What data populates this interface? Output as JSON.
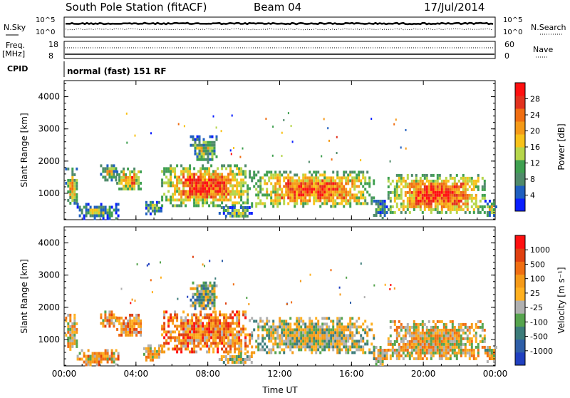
{
  "header": {
    "station": "South Pole Station (fitACF)",
    "beam": "Beam 04",
    "date": "17/Jul/2014"
  },
  "status_panels": {
    "nsky_label": "N.Sky",
    "nsky_ticks": [
      "10^5",
      "10^0"
    ],
    "nsearch_label": "N.Search",
    "nsearch_ticks": [
      "10^5",
      "10^0"
    ],
    "freq_label": "Freq.",
    "freq_unit": "[MHz]",
    "freq_ticks": [
      "18",
      "8"
    ],
    "nave_label": "Nave",
    "nave_ticks": [
      "60",
      "0"
    ],
    "cpid_label": "CPID",
    "cpid_text": "normal (fast) 151 RF"
  },
  "chart_data": [
    {
      "type": "heatmap",
      "title": "",
      "ylabel": "Slant Range [km]",
      "xlabel": "",
      "x_ticks": [
        "00:00",
        "04:00",
        "08:00",
        "12:00",
        "16:00",
        "20:00",
        "00:00"
      ],
      "xlim_hours": [
        0,
        24
      ],
      "y_ticks": [
        1000,
        2000,
        3000,
        4000
      ],
      "ylim": [
        180,
        4500
      ],
      "colorbar": {
        "label": "Power [dB]",
        "ticks": [
          "4",
          "8",
          "12",
          "16",
          "20",
          "24",
          "28"
        ],
        "colors": [
          "#0a1fff",
          "#1f5fc0",
          "#4f8a6a",
          "#3fa050",
          "#b6d64b",
          "#f8c21a",
          "#f59a18",
          "#f06e12",
          "#e2321e",
          "#ff1010"
        ]
      },
      "echo_regions": [
        {
          "t0": 0.05,
          "t1": 0.7,
          "r0": 700,
          "r1": 1800,
          "level": 0.55
        },
        {
          "t0": 0.7,
          "t1": 3.0,
          "r0": 250,
          "r1": 700,
          "level": 0.3
        },
        {
          "t0": 2.0,
          "t1": 2.9,
          "r0": 1450,
          "r1": 1900,
          "level": 0.5
        },
        {
          "t0": 2.9,
          "t1": 4.3,
          "r0": 1100,
          "r1": 1800,
          "level": 0.65
        },
        {
          "t0": 4.4,
          "t1": 5.4,
          "r0": 400,
          "r1": 850,
          "level": 0.35
        },
        {
          "t0": 5.4,
          "t1": 10.3,
          "r0": 650,
          "r1": 1900,
          "level": 0.8
        },
        {
          "t0": 7.0,
          "t1": 8.5,
          "r0": 2000,
          "r1": 2800,
          "level": 0.4
        },
        {
          "t0": 8.6,
          "t1": 10.4,
          "r0": 250,
          "r1": 600,
          "level": 0.35
        },
        {
          "t0": 10.4,
          "t1": 17.2,
          "r0": 600,
          "r1": 1700,
          "level": 0.75
        },
        {
          "t0": 17.2,
          "t1": 18.0,
          "r0": 250,
          "r1": 800,
          "level": 0.3
        },
        {
          "t0": 18.0,
          "t1": 23.4,
          "r0": 400,
          "r1": 1600,
          "level": 0.8
        },
        {
          "t0": 23.4,
          "t1": 24.0,
          "r0": 300,
          "r1": 800,
          "level": 0.4
        }
      ]
    },
    {
      "type": "heatmap",
      "title": "",
      "ylabel": "Slant Range [km]",
      "xlabel": "Time UT",
      "x_ticks": [
        "00:00",
        "04:00",
        "08:00",
        "12:00",
        "16:00",
        "20:00",
        "00:00"
      ],
      "xlim_hours": [
        0,
        24
      ],
      "y_ticks": [
        1000,
        2000,
        3000,
        4000
      ],
      "ylim": [
        180,
        4500
      ],
      "colorbar": {
        "label": "Velocity [m s⁻¹]",
        "ticks": [
          "1000",
          "500",
          "100",
          "25",
          "-25",
          "-100",
          "-500",
          "-1000"
        ],
        "colors": [
          "#2040c0",
          "#2f5fa8",
          "#3c7c7a",
          "#56a44e",
          "#b0b0b0",
          "#ffb020",
          "#f59a18",
          "#f06e12",
          "#e04010",
          "#ff1010"
        ]
      },
      "echo_regions": [
        {
          "t0": 0.05,
          "t1": 0.7,
          "r0": 700,
          "r1": 1800,
          "level": 0.55
        },
        {
          "t0": 0.7,
          "t1": 3.0,
          "r0": 250,
          "r1": 700,
          "level": 0.6
        },
        {
          "t0": 2.0,
          "t1": 2.9,
          "r0": 1450,
          "r1": 1900,
          "level": 0.6
        },
        {
          "t0": 2.9,
          "t1": 4.3,
          "r0": 1100,
          "r1": 1800,
          "level": 0.65
        },
        {
          "t0": 4.4,
          "t1": 5.4,
          "r0": 400,
          "r1": 850,
          "level": 0.55
        },
        {
          "t0": 5.4,
          "t1": 10.3,
          "r0": 650,
          "r1": 1900,
          "level": 0.7
        },
        {
          "t0": 7.0,
          "t1": 8.5,
          "r0": 2000,
          "r1": 2800,
          "level": 0.4
        },
        {
          "t0": 8.6,
          "t1": 10.4,
          "r0": 250,
          "r1": 600,
          "level": 0.45
        },
        {
          "t0": 10.4,
          "t1": 17.2,
          "r0": 600,
          "r1": 1700,
          "level": 0.45
        },
        {
          "t0": 17.2,
          "t1": 18.0,
          "r0": 250,
          "r1": 800,
          "level": 0.5
        },
        {
          "t0": 18.0,
          "t1": 23.4,
          "r0": 400,
          "r1": 1600,
          "level": 0.55
        },
        {
          "t0": 23.4,
          "t1": 24.0,
          "r0": 300,
          "r1": 800,
          "level": 0.5
        }
      ]
    }
  ]
}
